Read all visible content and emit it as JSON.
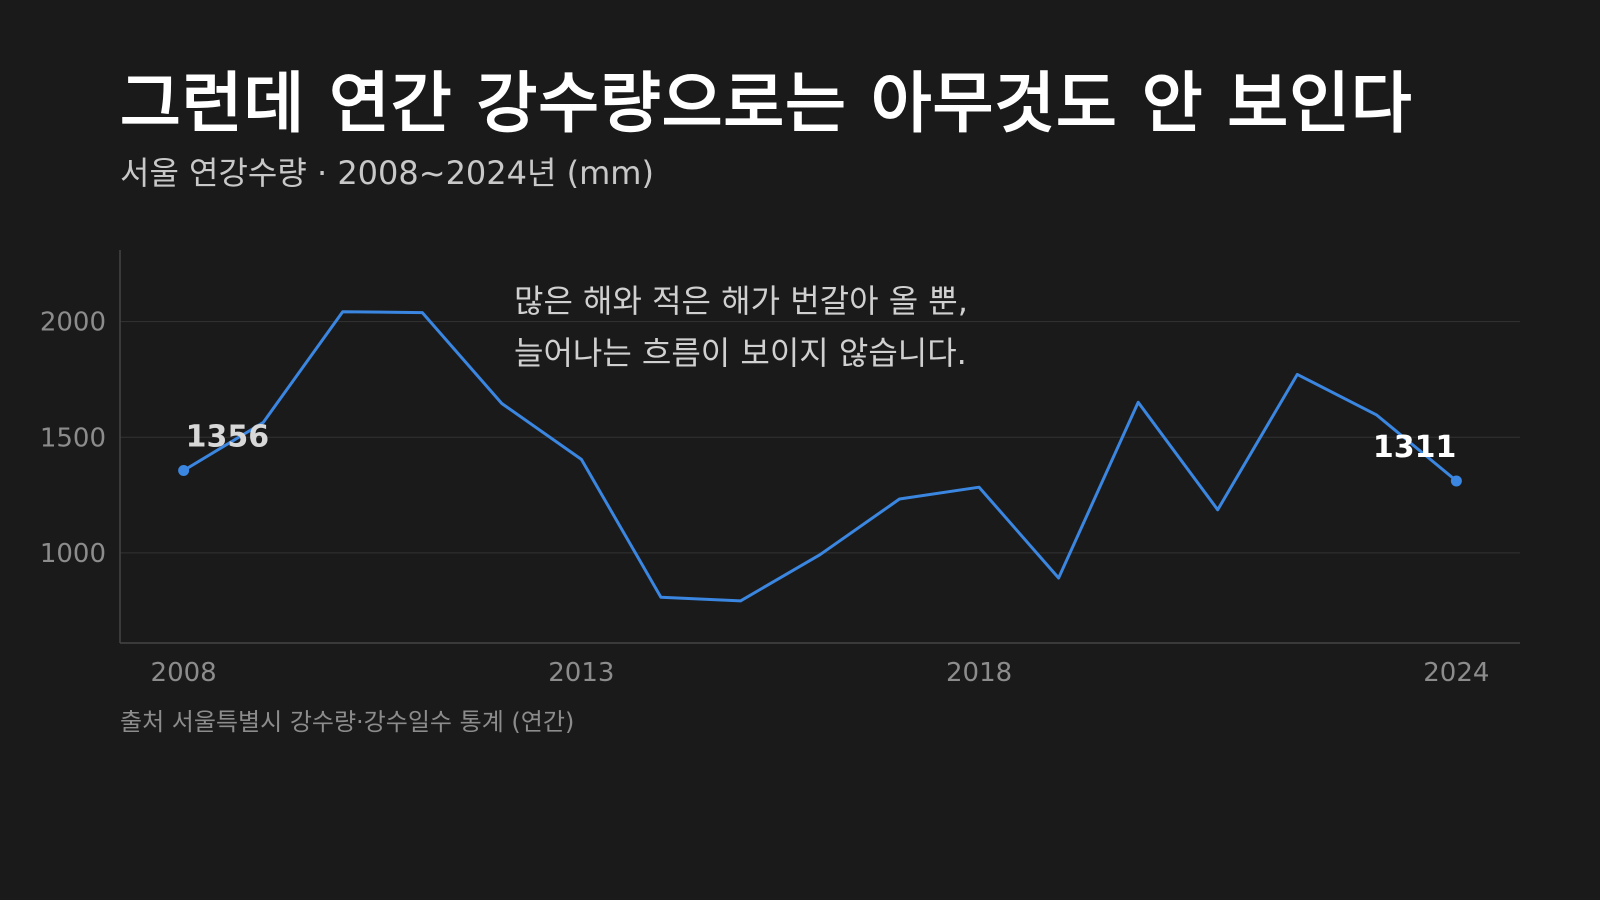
{
  "title": "그런데 연간 강수량으로는 아무것도 안 보인다",
  "subtitle": "서울 연강수량 · 2008~2024년 (mm)",
  "source": "출처 서울특별시 강수량·강수일수 통계 (연간)",
  "annotation": {
    "line1": "많은 해와 적은 해가 번갈아 올 뿐,",
    "line2": "늘어나는 흐름이 보이지 않습니다."
  },
  "colors": {
    "background": "#1a1a1a",
    "line": "#3a86e0",
    "grid": "#333333",
    "axis": "#444444"
  },
  "chart_data": {
    "type": "line",
    "title": "그런데 연간 강수량으로는 아무것도 안 보인다",
    "subtitle": "서울 연강수량 · 2008~2024년 (mm)",
    "xlabel": "",
    "ylabel": "",
    "x": [
      2008,
      2009,
      2010,
      2011,
      2012,
      2013,
      2014,
      2015,
      2016,
      2017,
      2018,
      2019,
      2020,
      2021,
      2022,
      2023,
      2024
    ],
    "series": [
      {
        "name": "",
        "values": [
          1356,
          1564,
          2043,
          2039,
          1646,
          1404,
          808,
          792,
          992,
          1233,
          1284,
          891,
          1651,
          1186,
          1772,
          1596,
          1311
        ]
      }
    ],
    "xticks": [
      2008,
      2013,
      2018,
      2024
    ],
    "yticks": [
      1000,
      1500,
      2000
    ],
    "ylim": [
      610,
      2310
    ],
    "xlim": [
      2007.2,
      2024.8
    ],
    "grid": true,
    "legend": "none",
    "labels": [
      {
        "x": 2008,
        "text": "1356"
      },
      {
        "x": 2024,
        "text": "1311"
      }
    ]
  }
}
